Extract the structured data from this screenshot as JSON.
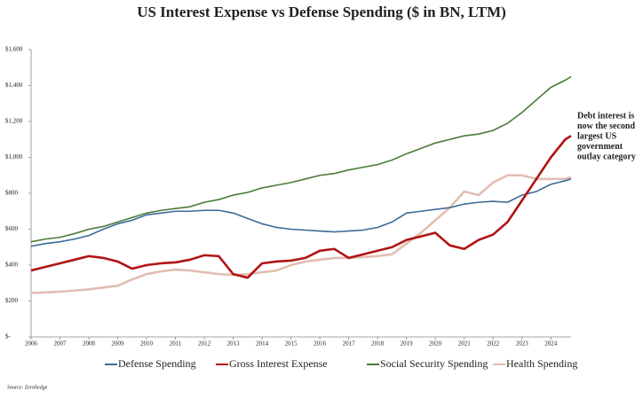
{
  "chart_data": {
    "type": "line",
    "title": "US Interest Expense vs Defense Spending ($ in BN, LTM)",
    "annotation": [
      "Debt interest is",
      "now the second",
      "largest US",
      "government",
      "outlay category"
    ],
    "source": "Source: Zerohedge",
    "x": [
      2006,
      2006.5,
      2007,
      2007.5,
      2008,
      2008.5,
      2009,
      2009.5,
      2010,
      2010.5,
      2011,
      2011.5,
      2012,
      2012.5,
      2013,
      2013.5,
      2014,
      2014.5,
      2015,
      2015.5,
      2016,
      2016.5,
      2017,
      2017.5,
      2018,
      2018.5,
      2019,
      2019.5,
      2020,
      2020.5,
      2021,
      2021.5,
      2022,
      2022.5,
      2023,
      2023.5,
      2024,
      2024.5,
      2024.7
    ],
    "series": [
      {
        "name": "Defense Spending",
        "color": "#3b6a9a",
        "values": [
          505,
          520,
          530,
          545,
          565,
          600,
          630,
          650,
          680,
          690,
          700,
          700,
          705,
          705,
          690,
          660,
          630,
          610,
          600,
          595,
          590,
          585,
          590,
          595,
          610,
          640,
          690,
          700,
          710,
          720,
          740,
          750,
          755,
          750,
          790,
          810,
          850,
          870,
          880
        ]
      },
      {
        "name": "Gross Interest Expense",
        "color": "#b01414",
        "values": [
          370,
          390,
          410,
          430,
          450,
          440,
          420,
          380,
          400,
          410,
          415,
          430,
          455,
          450,
          350,
          330,
          410,
          420,
          425,
          440,
          480,
          490,
          440,
          460,
          480,
          500,
          540,
          560,
          580,
          510,
          490,
          540,
          570,
          640,
          760,
          880,
          1000,
          1100,
          1120
        ]
      },
      {
        "name": "Social Security Spending",
        "color": "#4a7a3a",
        "values": [
          530,
          545,
          555,
          575,
          600,
          615,
          640,
          665,
          690,
          705,
          715,
          725,
          750,
          765,
          790,
          805,
          830,
          845,
          860,
          880,
          900,
          910,
          930,
          945,
          960,
          985,
          1020,
          1050,
          1080,
          1100,
          1120,
          1130,
          1150,
          1190,
          1250,
          1320,
          1390,
          1430,
          1450
        ]
      },
      {
        "name": "Health Spending",
        "color": "#e2bdb1",
        "values": [
          245,
          248,
          252,
          258,
          265,
          275,
          285,
          320,
          350,
          365,
          375,
          370,
          360,
          350,
          345,
          350,
          360,
          370,
          400,
          420,
          430,
          440,
          440,
          445,
          450,
          460,
          520,
          580,
          650,
          720,
          810,
          790,
          860,
          900,
          900,
          880,
          880,
          880,
          890
        ]
      }
    ],
    "xlim": [
      2006,
      2024.7
    ],
    "xticks": [
      2006,
      2007,
      2008,
      2009,
      2010,
      2011,
      2012,
      2013,
      2014,
      2015,
      2016,
      2017,
      2018,
      2019,
      2020,
      2021,
      2022,
      2023,
      2024
    ],
    "ylim": [
      0,
      1600
    ],
    "yticks": [
      {
        "value": 0,
        "label": "$-"
      },
      {
        "value": 200,
        "label": "$200"
      },
      {
        "value": 400,
        "label": "$400"
      },
      {
        "value": 600,
        "label": "$600"
      },
      {
        "value": 800,
        "label": "$800"
      },
      {
        "value": 1000,
        "label": "$1,000"
      },
      {
        "value": 1200,
        "label": "$1,200"
      },
      {
        "value": 1400,
        "label": "$1,400"
      },
      {
        "value": 1600,
        "label": "$1,600"
      }
    ],
    "grid": false
  }
}
